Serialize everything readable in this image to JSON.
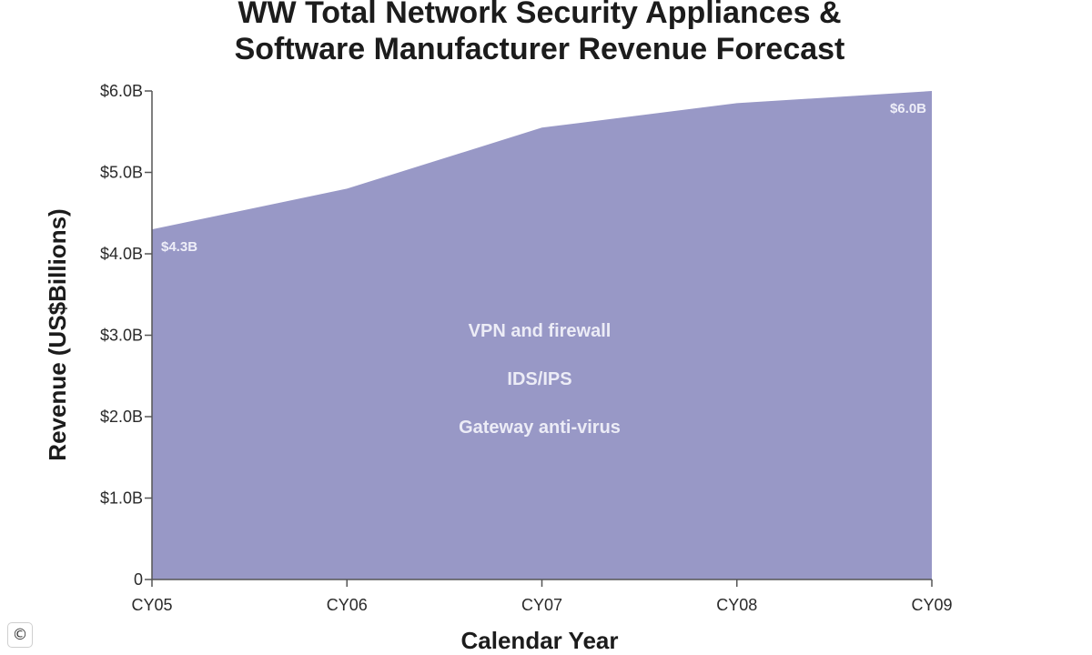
{
  "chart_data": {
    "type": "area",
    "title_lines": [
      "WW Total Network Security Appliances &",
      "Software Manufacturer Revenue Forecast"
    ],
    "xlabel": "Calendar Year",
    "ylabel": "Revenue (US$Billions)",
    "categories": [
      "CY05",
      "CY06",
      "CY07",
      "CY08",
      "CY09"
    ],
    "values": [
      4.3,
      4.8,
      5.55,
      5.85,
      6.0
    ],
    "ylim": [
      0,
      6.0
    ],
    "yticks": [
      0,
      1,
      2,
      3,
      4,
      5,
      6
    ],
    "ytick_labels": [
      "0",
      "$1.0B",
      "$2.0B",
      "$3.0B",
      "$4.0B",
      "$5.0B",
      "$6.0B"
    ],
    "data_labels": [
      {
        "index": 0,
        "text": "$4.3B"
      },
      {
        "index": 4,
        "text": "$6.0B"
      }
    ],
    "annotations": [
      "VPN and firewall",
      "IDS/IPS",
      "Gateway anti-virus"
    ],
    "grid": false,
    "colors": {
      "area": "#9898c6",
      "axis": "#555555"
    }
  },
  "watermark": {
    "icon": "copyright-icon",
    "symbol": "©"
  }
}
